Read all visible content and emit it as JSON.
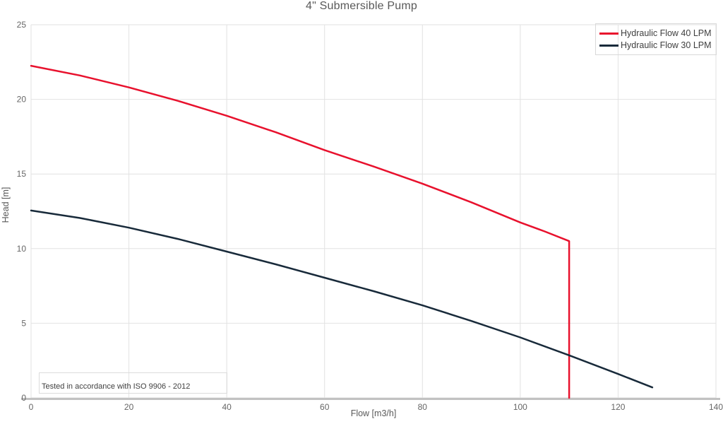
{
  "chart": {
    "title": "4\" Submersible Pump",
    "note": "Tested in accordance with ISO 9906 - 2012"
  },
  "chart_data": {
    "type": "line",
    "title": "4\" Submersible Pump",
    "xlabel": "Flow [m3/h]",
    "ylabel": "Head [m]",
    "xlim": [
      0,
      140
    ],
    "ylim": [
      0,
      25
    ],
    "x_ticks": [
      0,
      20,
      40,
      60,
      80,
      100,
      120,
      140
    ],
    "y_ticks": [
      0,
      5,
      10,
      15,
      20,
      25
    ],
    "grid": true,
    "legend_position": "top-right",
    "colors": {
      "grid": "#e2e2e2",
      "axis_line": "#c2c2c2",
      "tick_label": "#666666",
      "series_40lpm": "#e8112d",
      "series_30lpm": "#182a3a"
    },
    "annotations": [
      "Tested in accordance with ISO 9906 - 2012"
    ],
    "series": [
      {
        "name": "Hydraulic Flow 40 LPM",
        "color": "#e8112d",
        "points": [
          [
            0,
            22.25
          ],
          [
            10,
            21.6
          ],
          [
            20,
            20.8
          ],
          [
            30,
            19.9
          ],
          [
            40,
            18.9
          ],
          [
            50,
            17.8
          ],
          [
            60,
            16.6
          ],
          [
            70,
            15.5
          ],
          [
            80,
            14.35
          ],
          [
            90,
            13.1
          ],
          [
            100,
            11.75
          ],
          [
            105,
            11.15
          ],
          [
            110,
            10.5
          ],
          [
            110,
            0
          ]
        ]
      },
      {
        "name": "Hydraulic Flow 30 LPM",
        "color": "#182a3a",
        "points": [
          [
            0,
            12.55
          ],
          [
            10,
            12.05
          ],
          [
            20,
            11.4
          ],
          [
            30,
            10.65
          ],
          [
            40,
            9.8
          ],
          [
            50,
            8.95
          ],
          [
            60,
            8.05
          ],
          [
            70,
            7.15
          ],
          [
            80,
            6.2
          ],
          [
            90,
            5.15
          ],
          [
            100,
            4.05
          ],
          [
            110,
            2.85
          ],
          [
            120,
            1.6
          ],
          [
            127,
            0.7
          ]
        ]
      }
    ]
  }
}
